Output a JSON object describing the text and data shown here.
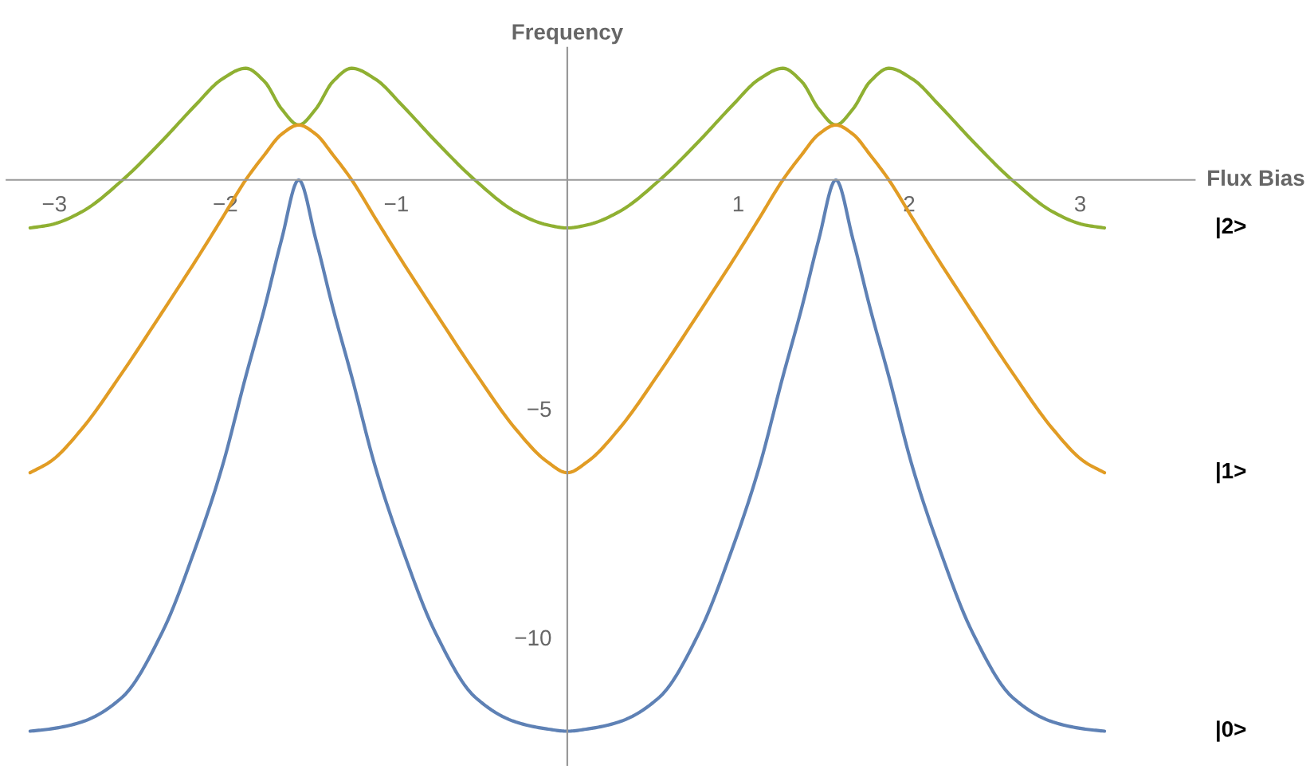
{
  "chart_data": {
    "type": "line",
    "xlabel": "Flux Bias",
    "ylabel": "Frequency",
    "x": [
      -3.142,
      -3.021,
      -2.841,
      -2.601,
      -2.371,
      -2.171,
      -2.021,
      -1.881,
      -1.771,
      -1.671,
      -1.571,
      -1.471,
      -1.371,
      -1.261,
      -1.121,
      -0.971,
      -0.771,
      -0.541,
      -0.301,
      -0.121,
      0,
      0.121,
      0.301,
      0.541,
      0.771,
      0.971,
      1.121,
      1.261,
      1.371,
      1.471,
      1.571,
      1.671,
      1.771,
      1.881,
      2.021,
      2.171,
      2.371,
      2.601,
      2.841,
      3.021,
      3.142
    ],
    "series": [
      {
        "name": "|2>",
        "color": "#8fb032",
        "values": [
          -1.05,
          -0.98,
          -0.7,
          0,
          0.85,
          1.65,
          2.2,
          2.44,
          2.15,
          1.55,
          1.2,
          1.55,
          2.15,
          2.44,
          2.2,
          1.65,
          0.85,
          0,
          -0.7,
          -0.98,
          -1.05,
          -0.98,
          -0.7,
          0,
          0.85,
          1.65,
          2.2,
          2.44,
          2.15,
          1.55,
          1.2,
          1.55,
          2.15,
          2.44,
          2.2,
          1.65,
          0.85,
          0,
          -0.7,
          -0.98,
          -1.05
        ]
      },
      {
        "name": "|1>",
        "color": "#e19c24",
        "values": [
          -6.4,
          -6.15,
          -5.45,
          -4.2,
          -2.9,
          -1.75,
          -0.85,
          0,
          0.55,
          1.0,
          1.2,
          1.0,
          0.55,
          0,
          -0.85,
          -1.75,
          -2.9,
          -4.2,
          -5.45,
          -6.15,
          -6.4,
          -6.15,
          -5.45,
          -4.2,
          -2.9,
          -1.75,
          -0.85,
          0,
          0.55,
          1.0,
          1.2,
          1.0,
          0.55,
          0,
          -0.85,
          -1.75,
          -2.9,
          -4.2,
          -5.45,
          -6.15,
          -6.4
        ]
      },
      {
        "name": "|0>",
        "color": "#5e81b5",
        "values": [
          -12.05,
          -12.0,
          -11.85,
          -11.3,
          -9.9,
          -8.0,
          -6.3,
          -4.3,
          -2.8,
          -1.3,
          0,
          -1.3,
          -2.8,
          -4.3,
          -6.3,
          -8.0,
          -9.9,
          -11.3,
          -11.85,
          -12.0,
          -12.05,
          -12.0,
          -11.85,
          -11.3,
          -9.9,
          -8.0,
          -6.3,
          -4.3,
          -2.8,
          -1.3,
          0,
          -1.3,
          -2.8,
          -4.3,
          -6.3,
          -8.0,
          -9.9,
          -11.3,
          -11.85,
          -12.0,
          -12.05
        ]
      }
    ],
    "xlim": [
      -3.28,
      3.67
    ],
    "ylim": [
      -12.79,
      2.89
    ],
    "xticks": [
      -3,
      -2,
      -1,
      1,
      2,
      3
    ],
    "yticks": [
      -10,
      -5
    ],
    "grid": false,
    "legend": false,
    "marker": "none",
    "line_style": "solid"
  }
}
